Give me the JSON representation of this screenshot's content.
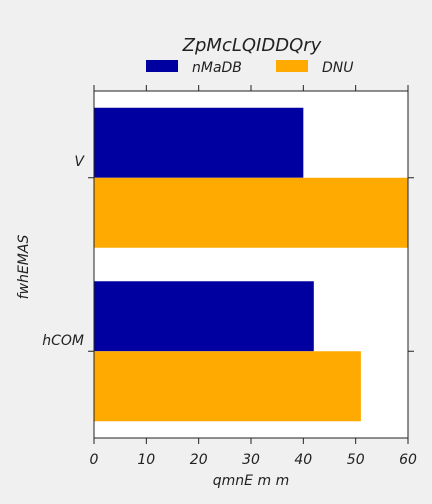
{
  "chart_data": {
    "type": "bar",
    "orientation": "horizontal",
    "title": "ZpMcLQIDDQry",
    "xlabel": "qmnE m m",
    "ylabel": "fwhEMAS",
    "categories": [
      "V",
      "hCOM"
    ],
    "series": [
      {
        "name": "nMaDB",
        "values": [
          40,
          42
        ],
        "color": "#0000a0"
      },
      {
        "name": "DNU",
        "values": [
          60,
          51
        ],
        "color": "#ffaa00"
      }
    ],
    "xlim": [
      0,
      60
    ],
    "xticks": [
      "0",
      "10",
      "20",
      "30",
      "40",
      "50",
      "60"
    ],
    "legend_position": "top",
    "grid": false
  },
  "colors": {
    "background": "#f0f0f0",
    "plot_area": "#ffffff"
  }
}
